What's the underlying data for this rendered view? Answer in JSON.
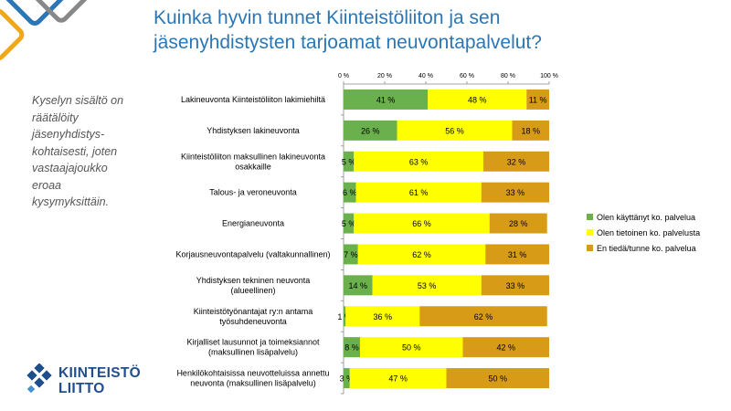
{
  "slide": {
    "title_lines": [
      "Kuinka hyvin tunnet Kiinteistöliiton ja sen",
      "jäsenyhdistysten tarjoamat neuvontapalvelut?"
    ],
    "side_note": "Kyselyn sisältö on räätälöity jäsenyhdistys-kohtaisesti, joten vastaajajoukko eroaa kysymyksittäin.",
    "logo_lines": [
      "KIINTEISTÖ",
      "LIITTO"
    ]
  },
  "colors": {
    "title": "#2b77b5",
    "logo": "#1f4e8c",
    "deco_blue": "#2b77b5",
    "deco_gold": "#f0a818",
    "deco_gray": "#888888"
  },
  "chart_data": {
    "type": "bar",
    "orientation": "horizontal",
    "stacked": true,
    "xlim": [
      0,
      100
    ],
    "x_ticks": [
      "0 %",
      "20 %",
      "40 %",
      "60 %",
      "80 %",
      "100 %"
    ],
    "x_tick_values": [
      0,
      20,
      40,
      60,
      80,
      100
    ],
    "legend_position": "right",
    "categories": [
      [
        "Lakineuvonta Kiinteistöliiton lakimiehiltä"
      ],
      [
        "Yhdistyksen lakineuvonta"
      ],
      [
        "Kiinteistöliiton maksullinen lakineuvonta",
        "osakkaille"
      ],
      [
        "Talous- ja veroneuvonta"
      ],
      [
        "Energianeuvonta"
      ],
      [
        "Korjausneuvontapalvelu (valtakunnallinen)"
      ],
      [
        "Yhdistyksen tekninen neuvonta",
        "(alueellinen)"
      ],
      [
        "Kiinteistötyönantajat ry:n antama",
        "työsuhdeneuvonta"
      ],
      [
        "Kirjalliset lausunnot ja toimeksiannot",
        "(maksullinen lisäpalvelu)"
      ],
      [
        "Henkilökohtaisissa neuvotteluissa annettu",
        "neuvonta (maksullinen lisäpalvelu)"
      ]
    ],
    "series": [
      {
        "name": "Olen käyttänyt ko. palvelua",
        "color": "#6ab04c",
        "values": [
          41,
          26,
          5,
          6,
          5,
          7,
          14,
          1,
          8,
          3
        ],
        "labels": [
          "41 %",
          "26 %",
          "5 %",
          "6 %",
          "5 %",
          "7 %",
          "14 %",
          "1 %",
          "8 %",
          "3 %"
        ]
      },
      {
        "name": "Olen tietoinen ko. palvelusta",
        "color": "#ffff00",
        "values": [
          48,
          56,
          63,
          61,
          66,
          62,
          53,
          36,
          50,
          47
        ],
        "labels": [
          "48 %",
          "56 %",
          "63 %",
          "61 %",
          "66 %",
          "62 %",
          "53 %",
          "36 %",
          "50 %",
          "47 %"
        ]
      },
      {
        "name": "En tiedä/tunne ko. palvelua",
        "color": "#d89b17",
        "values": [
          11,
          18,
          32,
          33,
          28,
          31,
          33,
          62,
          42,
          50
        ],
        "labels": [
          "11 %",
          "18 %",
          "32 %",
          "33 %",
          "28 %",
          "31 %",
          "33 %",
          "62 %",
          "42 %",
          "50 %"
        ]
      }
    ]
  }
}
